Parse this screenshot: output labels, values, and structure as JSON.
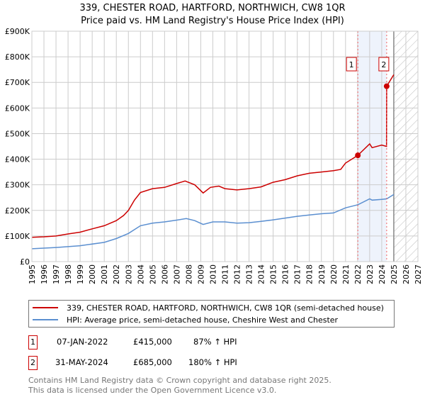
{
  "title": "339, CHESTER ROAD, HARTFORD, NORTHWICH, CW8 1QR",
  "subtitle": "Price paid vs. HM Land Registry's House Price Index (HPI)",
  "chart_data": {
    "type": "line",
    "title": "339, CHESTER ROAD, HARTFORD, NORTHWICH, CW8 1QR",
    "xlim": [
      1995,
      2027
    ],
    "ylim": [
      0,
      900000
    ],
    "x_ticks": [
      "1995",
      "1996",
      "1997",
      "1998",
      "1999",
      "2000",
      "2001",
      "2002",
      "2003",
      "2004",
      "2005",
      "2006",
      "2007",
      "2008",
      "2009",
      "2010",
      "2011",
      "2012",
      "2013",
      "2014",
      "2015",
      "2016",
      "2017",
      "2018",
      "2019",
      "2020",
      "2021",
      "2022",
      "2023",
      "2024",
      "2025",
      "2026",
      "2027"
    ],
    "y_ticks": [
      {
        "v": 0,
        "label": "£0"
      },
      {
        "v": 100000,
        "label": "£100K"
      },
      {
        "v": 200000,
        "label": "£200K"
      },
      {
        "v": 300000,
        "label": "£300K"
      },
      {
        "v": 400000,
        "label": "£400K"
      },
      {
        "v": 500000,
        "label": "£500K"
      },
      {
        "v": 600000,
        "label": "£600K"
      },
      {
        "v": 700000,
        "label": "£700K"
      },
      {
        "v": 800000,
        "label": "£800K"
      },
      {
        "v": 900000,
        "label": "£900K"
      }
    ],
    "grid": true,
    "shaded_range": [
      2022.02,
      2024.41
    ],
    "forecast_hatch_from": 2025.0,
    "series": [
      {
        "name": "339, CHESTER ROAD, HARTFORD, NORTHWICH, CW8 1QR (semi-detached house)",
        "color": "#cc0000",
        "x": [
          1995,
          1996,
          1997,
          1998,
          1999,
          2000,
          2001,
          2002,
          2002.6,
          2003,
          2003.5,
          2004,
          2005,
          2006,
          2007,
          2007.7,
          2008.5,
          2009.2,
          2009.8,
          2010.5,
          2011,
          2012,
          2013,
          2014,
          2015,
          2016,
          2017,
          2018,
          2019,
          2020,
          2020.6,
          2021,
          2022.02,
          2023,
          2023.2,
          2024,
          2024.4,
          2024.41,
          2025
        ],
        "y": [
          95000,
          97000,
          100000,
          108000,
          115000,
          128000,
          140000,
          160000,
          180000,
          200000,
          240000,
          270000,
          285000,
          290000,
          305000,
          315000,
          300000,
          268000,
          290000,
          295000,
          285000,
          280000,
          285000,
          292000,
          310000,
          320000,
          335000,
          345000,
          350000,
          355000,
          360000,
          385000,
          415000,
          460000,
          445000,
          455000,
          450000,
          685000,
          730000
        ]
      },
      {
        "name": "HPI: Average price, semi-detached house, Cheshire West and Chester",
        "color": "#5b8fd0",
        "x": [
          1995,
          1997,
          1999,
          2001,
          2002,
          2003,
          2004,
          2005,
          2006,
          2007,
          2007.8,
          2008.5,
          2009.2,
          2010,
          2011,
          2012,
          2013,
          2014,
          2015,
          2016,
          2017,
          2018,
          2019,
          2020,
          2021,
          2022.02,
          2023,
          2023.2,
          2024,
          2024.41,
          2025
        ],
        "y": [
          50000,
          55000,
          62000,
          75000,
          90000,
          110000,
          140000,
          150000,
          155000,
          162000,
          168000,
          160000,
          145000,
          155000,
          155000,
          150000,
          152000,
          157000,
          163000,
          170000,
          177000,
          182000,
          187000,
          190000,
          210000,
          222000,
          245000,
          240000,
          243000,
          245000,
          262000
        ]
      }
    ],
    "annotations": [
      {
        "label": "1",
        "x": 2022.02,
        "y": 415000
      },
      {
        "label": "2",
        "x": 2024.41,
        "y": 685000
      }
    ]
  },
  "legend": [
    {
      "label": "339, CHESTER ROAD, HARTFORD, NORTHWICH, CW8 1QR (semi-detached house)",
      "color": "#cc0000"
    },
    {
      "label": "HPI: Average price, semi-detached house, Cheshire West and Chester",
      "color": "#5b8fd0"
    }
  ],
  "sales": [
    {
      "num": "1",
      "date": "07-JAN-2022",
      "price": "£415,000",
      "hpi": "87% ↑ HPI"
    },
    {
      "num": "2",
      "date": "31-MAY-2024",
      "price": "£685,000",
      "hpi": "180% ↑ HPI"
    }
  ],
  "footer": {
    "line1": "Contains HM Land Registry data © Crown copyright and database right 2025.",
    "line2": "This data is licensed under the Open Government Licence v3.0."
  }
}
